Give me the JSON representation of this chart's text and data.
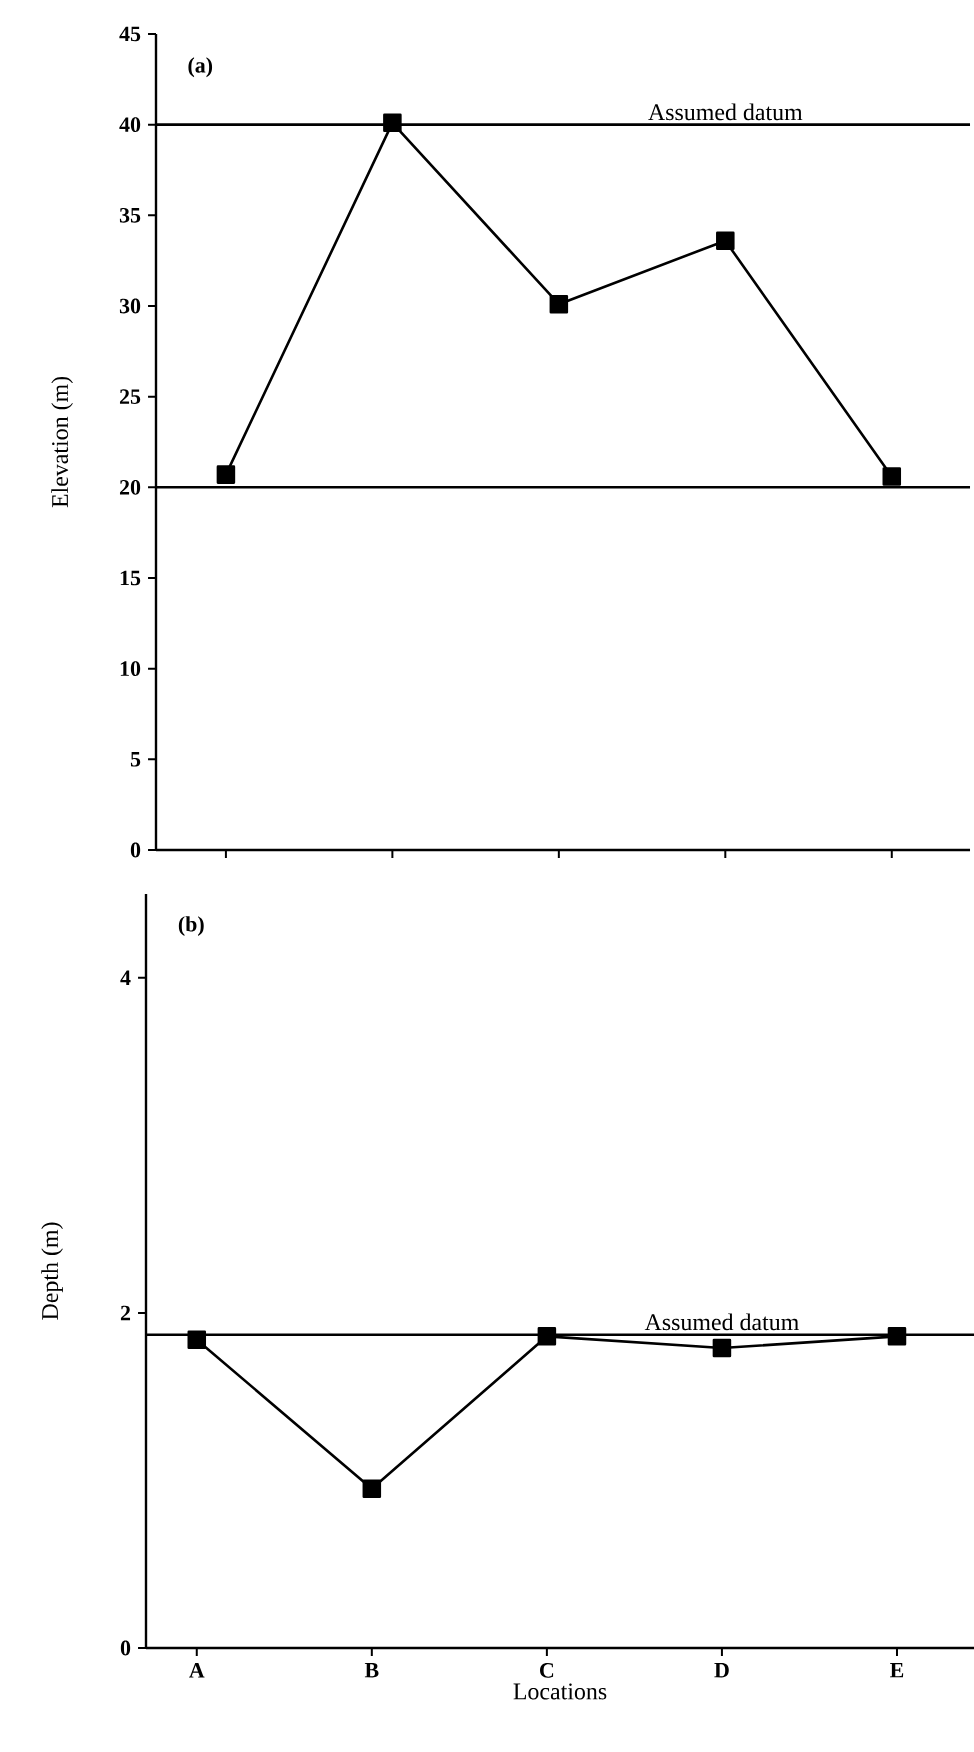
{
  "chart_data": [
    {
      "type": "line",
      "title": "(a)",
      "ylabel": "Elevation (m)",
      "categories": [
        null,
        null,
        null,
        null,
        null
      ],
      "values": [
        20.7,
        40.1,
        30.1,
        33.6,
        20.6
      ],
      "color": "#000000",
      "marker": "square",
      "line_style": "solid",
      "ylim": [
        0,
        45
      ],
      "yticks": [
        0,
        5,
        10,
        15,
        20,
        25,
        30,
        35,
        40,
        45
      ],
      "ref_lines": [
        {
          "axis": "y",
          "value": 40,
          "label": "Assumed datum"
        },
        {
          "axis": "y",
          "value": 20
        }
      ]
    },
    {
      "type": "line",
      "title": "(b)",
      "xlabel": "Locations",
      "ylabel": "Depth (m)",
      "categories": [
        "A",
        "B",
        "C",
        "D",
        "E"
      ],
      "values": [
        1.84,
        0.95,
        1.86,
        1.79,
        1.86
      ],
      "color": "#000000",
      "marker": "square",
      "line_style": "solid",
      "ylim": [
        0,
        4.5
      ],
      "yticks": [
        0,
        2,
        4
      ],
      "ref_lines": [
        {
          "axis": "y",
          "value": 1.87,
          "label": "Assumed datum"
        }
      ]
    }
  ]
}
